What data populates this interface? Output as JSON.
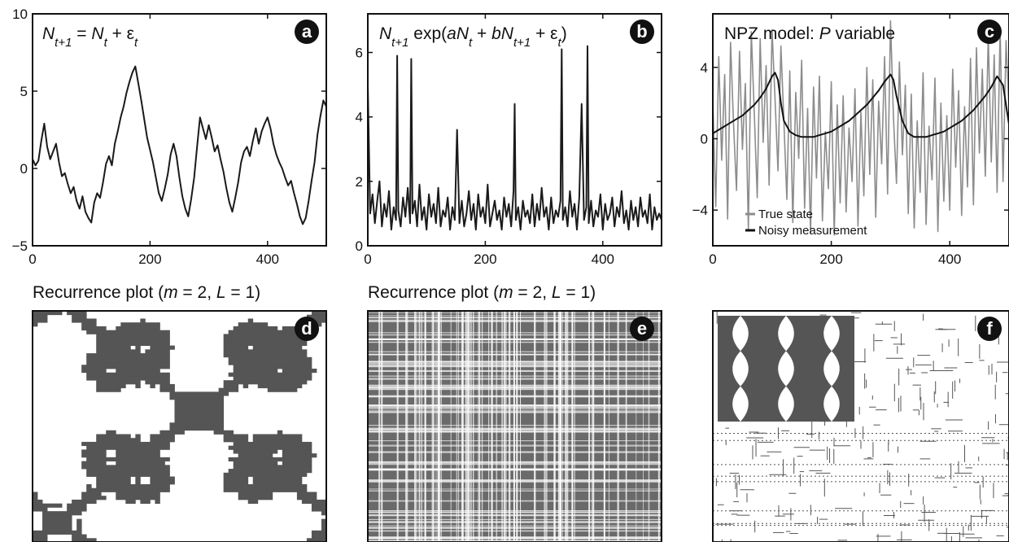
{
  "chart_data": [
    {
      "id": "a",
      "type": "line",
      "badge": "a",
      "title_parts": [
        {
          "t": "N",
          "i": true
        },
        {
          "t": "t+1",
          "i": true,
          "sub": true
        },
        {
          "t": " = "
        },
        {
          "t": "N",
          "i": true
        },
        {
          "t": "t",
          "i": true,
          "sub": true
        },
        {
          "t": " + ε"
        },
        {
          "t": "t",
          "i": true,
          "sub": true
        }
      ],
      "xlim": [
        0,
        500
      ],
      "ylim": [
        -5,
        10
      ],
      "xticks": [
        0,
        200,
        400
      ],
      "yticks": [
        -5,
        0,
        5,
        10
      ],
      "series": [
        {
          "color": "#1a1a1a",
          "x": [
            0,
            5,
            10,
            15,
            20,
            25,
            30,
            35,
            40,
            45,
            50,
            55,
            60,
            65,
            70,
            75,
            80,
            85,
            90,
            95,
            100,
            105,
            110,
            115,
            120,
            125,
            130,
            135,
            140,
            145,
            150,
            155,
            160,
            165,
            170,
            175,
            180,
            185,
            190,
            195,
            200,
            205,
            210,
            215,
            220,
            225,
            230,
            235,
            240,
            245,
            250,
            255,
            260,
            265,
            270,
            275,
            280,
            285,
            290,
            295,
            300,
            305,
            310,
            315,
            320,
            325,
            330,
            335,
            340,
            345,
            350,
            355,
            360,
            365,
            370,
            375,
            380,
            385,
            390,
            395,
            400,
            405,
            410,
            415,
            420,
            425,
            430,
            435,
            440,
            445,
            450,
            455,
            460,
            465,
            470,
            475,
            480,
            485,
            490,
            495,
            500
          ],
          "y": [
            0.6,
            0.2,
            0.5,
            1.8,
            2.9,
            1.4,
            0.6,
            1.1,
            1.6,
            0.4,
            -0.5,
            -0.3,
            -1.0,
            -1.6,
            -1.2,
            -2.1,
            -2.6,
            -1.8,
            -2.8,
            -3.2,
            -3.5,
            -2.2,
            -1.6,
            -1.9,
            -0.9,
            0.3,
            0.8,
            0.2,
            1.6,
            2.4,
            3.3,
            4.0,
            4.9,
            5.6,
            6.2,
            6.6,
            5.5,
            4.4,
            3.2,
            2.0,
            1.2,
            0.4,
            -0.6,
            -1.6,
            -2.1,
            -1.3,
            -0.4,
            0.9,
            1.6,
            0.8,
            -0.6,
            -1.8,
            -2.6,
            -3.1,
            -2.0,
            -0.6,
            1.4,
            3.3,
            2.6,
            1.9,
            2.8,
            2.0,
            1.1,
            1.5,
            0.6,
            -0.2,
            -1.3,
            -2.2,
            -2.8,
            -1.9,
            -0.9,
            0.4,
            1.1,
            1.4,
            0.8,
            1.8,
            2.6,
            1.6,
            2.4,
            2.9,
            3.3,
            2.6,
            1.6,
            0.9,
            0.4,
            0.0,
            -0.6,
            -1.1,
            -0.8,
            -1.6,
            -2.3,
            -3.1,
            -3.6,
            -3.2,
            -2.1,
            -0.8,
            0.4,
            2.2,
            3.4,
            4.4,
            4.0
          ]
        }
      ]
    },
    {
      "id": "b",
      "type": "line",
      "badge": "b",
      "title_parts": [
        {
          "t": "N",
          "i": true
        },
        {
          "t": "t+1",
          "i": true,
          "sub": true
        },
        {
          "t": " exp("
        },
        {
          "t": "aN",
          "i": true
        },
        {
          "t": "t",
          "i": true,
          "sub": true
        },
        {
          "t": " + "
        },
        {
          "t": "bN",
          "i": true
        },
        {
          "t": "t+1",
          "i": true,
          "sub": true
        },
        {
          "t": " + ε"
        },
        {
          "t": "t",
          "i": true,
          "sub": true
        },
        {
          "t": ")"
        }
      ],
      "xlim": [
        0,
        500
      ],
      "ylim": [
        0,
        7.2
      ],
      "xticks": [
        0,
        200,
        400
      ],
      "yticks": [
        0,
        2,
        4,
        6
      ],
      "series": [
        {
          "color": "#1a1a1a",
          "x": [
            0,
            4,
            8,
            12,
            16,
            20,
            24,
            28,
            32,
            36,
            40,
            44,
            48,
            50,
            52,
            56,
            60,
            64,
            68,
            72,
            74,
            76,
            80,
            84,
            88,
            92,
            96,
            100,
            104,
            108,
            112,
            116,
            120,
            124,
            128,
            132,
            136,
            140,
            144,
            148,
            152,
            156,
            160,
            164,
            168,
            172,
            176,
            180,
            184,
            188,
            192,
            196,
            200,
            204,
            208,
            212,
            216,
            220,
            224,
            228,
            232,
            236,
            240,
            244,
            248,
            250,
            252,
            256,
            260,
            264,
            268,
            272,
            276,
            280,
            284,
            288,
            292,
            296,
            300,
            304,
            308,
            312,
            316,
            320,
            324,
            328,
            330,
            332,
            336,
            340,
            344,
            348,
            352,
            356,
            360,
            364,
            368,
            372,
            374,
            376,
            380,
            384,
            388,
            392,
            396,
            400,
            404,
            408,
            412,
            416,
            420,
            424,
            428,
            432,
            436,
            440,
            444,
            448,
            452,
            456,
            460,
            464,
            468,
            472,
            476,
            480,
            484,
            488,
            492,
            496,
            500
          ],
          "y": [
            5.0,
            1.0,
            1.6,
            0.7,
            1.4,
            2.0,
            0.6,
            1.3,
            0.9,
            1.7,
            0.5,
            1.2,
            0.8,
            5.9,
            1.1,
            0.6,
            1.5,
            0.9,
            1.8,
            0.7,
            5.8,
            1.0,
            1.4,
            0.6,
            1.9,
            0.8,
            1.2,
            0.5,
            1.6,
            0.9,
            1.3,
            0.7,
            1.8,
            0.6,
            1.1,
            0.9,
            1.5,
            0.5,
            1.2,
            0.8,
            3.6,
            0.7,
            1.4,
            0.6,
            1.0,
            1.7,
            0.8,
            1.3,
            0.5,
            1.6,
            0.9,
            1.2,
            0.7,
            1.9,
            0.6,
            1.0,
            1.4,
            0.8,
            1.1,
            0.5,
            1.5,
            0.9,
            1.3,
            0.6,
            1.7,
            4.4,
            0.8,
            1.2,
            0.5,
            1.4,
            0.9,
            1.1,
            0.7,
            1.6,
            0.6,
            1.3,
            0.8,
            1.8,
            0.9,
            1.2,
            0.5,
            1.5,
            0.7,
            1.1,
            0.9,
            1.4,
            6.1,
            0.8,
            1.2,
            0.6,
            1.7,
            0.9,
            1.3,
            0.5,
            1.5,
            4.4,
            0.8,
            1.2,
            6.2,
            0.7,
            1.4,
            0.6,
            1.1,
            0.9,
            1.6,
            0.5,
            1.3,
            0.8,
            1.0,
            1.5,
            0.6,
            1.2,
            0.9,
            1.7,
            0.7,
            1.1,
            0.5,
            1.4,
            0.8,
            1.2,
            0.6,
            1.5,
            0.9,
            1.1,
            0.7,
            1.6,
            0.5,
            1.2,
            0.8,
            1.0,
            0.8
          ]
        }
      ]
    },
    {
      "id": "c",
      "type": "line",
      "badge": "c",
      "title_parts": [
        {
          "t": "NPZ model: "
        },
        {
          "t": "P",
          "i": true
        },
        {
          "t": " variable"
        }
      ],
      "xlim": [
        0,
        500
      ],
      "ylim": [
        -6,
        7
      ],
      "xticks": [
        0,
        200,
        400
      ],
      "yticks": [
        -4,
        0,
        4
      ],
      "legend": {
        "position": "bottom-left",
        "entries": [
          "True state",
          "Noisy measurement"
        ]
      },
      "series": [
        {
          "name": "True state",
          "color": "#8c8c8c",
          "x": [
            0,
            5,
            10,
            15,
            20,
            25,
            30,
            35,
            40,
            45,
            50,
            55,
            60,
            65,
            70,
            75,
            80,
            85,
            90,
            95,
            100,
            105,
            110,
            115,
            120,
            125,
            130,
            135,
            140,
            145,
            150,
            155,
            160,
            165,
            170,
            175,
            180,
            185,
            190,
            195,
            200,
            205,
            210,
            215,
            220,
            225,
            230,
            235,
            240,
            245,
            250,
            255,
            260,
            265,
            270,
            275,
            280,
            285,
            290,
            295,
            300,
            305,
            310,
            315,
            320,
            325,
            330,
            335,
            340,
            345,
            350,
            355,
            360,
            365,
            370,
            375,
            380,
            385,
            390,
            395,
            400,
            405,
            410,
            415,
            420,
            425,
            430,
            435,
            440,
            445,
            450,
            455,
            460,
            465,
            470,
            475,
            480,
            485,
            490,
            495,
            500
          ],
          "y": [
            2.2,
            -3.8,
            4.6,
            -1.2,
            3.6,
            -4.5,
            5.4,
            0.8,
            -2.9,
            4.9,
            -0.6,
            3.1,
            -5.1,
            6.0,
            1.4,
            -3.3,
            5.6,
            -0.2,
            4.1,
            -2.6,
            6.1,
            2.3,
            -1.8,
            5.2,
            0.9,
            -3.4,
            3.8,
            -4.7,
            2.6,
            -1.1,
            4.4,
            -3.9,
            1.7,
            -5.3,
            2.9,
            -2.2,
            3.5,
            -4.6,
            0.4,
            -2.8,
            3.2,
            -5.4,
            1.9,
            -3.6,
            2.4,
            -4.1,
            0.6,
            -2.4,
            2.8,
            -4.9,
            1.5,
            -3.2,
            4.0,
            -2.0,
            3.3,
            -4.4,
            2.1,
            -1.4,
            4.6,
            -3.1,
            6.6,
            1.2,
            -2.5,
            4.3,
            -0.9,
            3.0,
            -4.2,
            2.5,
            -5.0,
            1.0,
            -3.0,
            3.7,
            -4.8,
            0.7,
            -2.3,
            3.4,
            -5.2,
            2.0,
            -3.5,
            1.3,
            -4.0,
            3.9,
            -1.6,
            2.7,
            -4.3,
            1.8,
            -2.7,
            4.5,
            -3.7,
            5.1,
            -0.8,
            3.9,
            -2.1,
            5.8,
            -1.3,
            4.7,
            -3.0,
            6.2,
            -2.4,
            5.5,
            1.6
          ]
        },
        {
          "name": "Noisy measurement",
          "color": "#111111",
          "x": [
            0,
            10,
            20,
            30,
            40,
            50,
            60,
            70,
            80,
            90,
            100,
            105,
            110,
            115,
            120,
            130,
            140,
            150,
            160,
            170,
            180,
            190,
            200,
            210,
            220,
            230,
            240,
            250,
            260,
            270,
            280,
            290,
            300,
            305,
            310,
            320,
            330,
            340,
            350,
            360,
            370,
            380,
            390,
            400,
            410,
            420,
            430,
            440,
            450,
            460,
            470,
            480,
            490,
            500
          ],
          "y": [
            0.3,
            0.5,
            0.7,
            0.9,
            1.1,
            1.3,
            1.6,
            1.9,
            2.3,
            2.8,
            3.5,
            3.7,
            3.3,
            2.0,
            1.0,
            0.4,
            0.2,
            0.1,
            0.1,
            0.1,
            0.2,
            0.3,
            0.4,
            0.6,
            0.8,
            1.0,
            1.3,
            1.6,
            1.9,
            2.3,
            2.7,
            3.2,
            3.6,
            3.3,
            2.4,
            1.0,
            0.3,
            0.1,
            0.1,
            0.1,
            0.2,
            0.3,
            0.4,
            0.6,
            0.8,
            1.0,
            1.3,
            1.6,
            2.0,
            2.4,
            2.9,
            3.5,
            3.0,
            0.8
          ]
        }
      ]
    },
    {
      "id": "d",
      "type": "heatmap",
      "badge": "d",
      "title_parts": [
        {
          "t": "Recurrence plot ("
        },
        {
          "t": "m",
          "i": true
        },
        {
          "t": " = 2, "
        },
        {
          "t": "L",
          "i": true
        },
        {
          "t": " = 1)"
        }
      ],
      "style": "coarse-blocks",
      "fill_color": "#555555"
    },
    {
      "id": "e",
      "type": "heatmap",
      "badge": "e",
      "title_parts": [
        {
          "t": "Recurrence plot ("
        },
        {
          "t": "m",
          "i": true
        },
        {
          "t": " = 2, "
        },
        {
          "t": "L",
          "i": true
        },
        {
          "t": " = 1)"
        }
      ],
      "style": "fine-noise",
      "fill_color": "#555555"
    },
    {
      "id": "f",
      "type": "heatmap",
      "badge": "f",
      "title_parts": [],
      "style": "sparse-with-inset",
      "fill_color": "#555555"
    }
  ]
}
